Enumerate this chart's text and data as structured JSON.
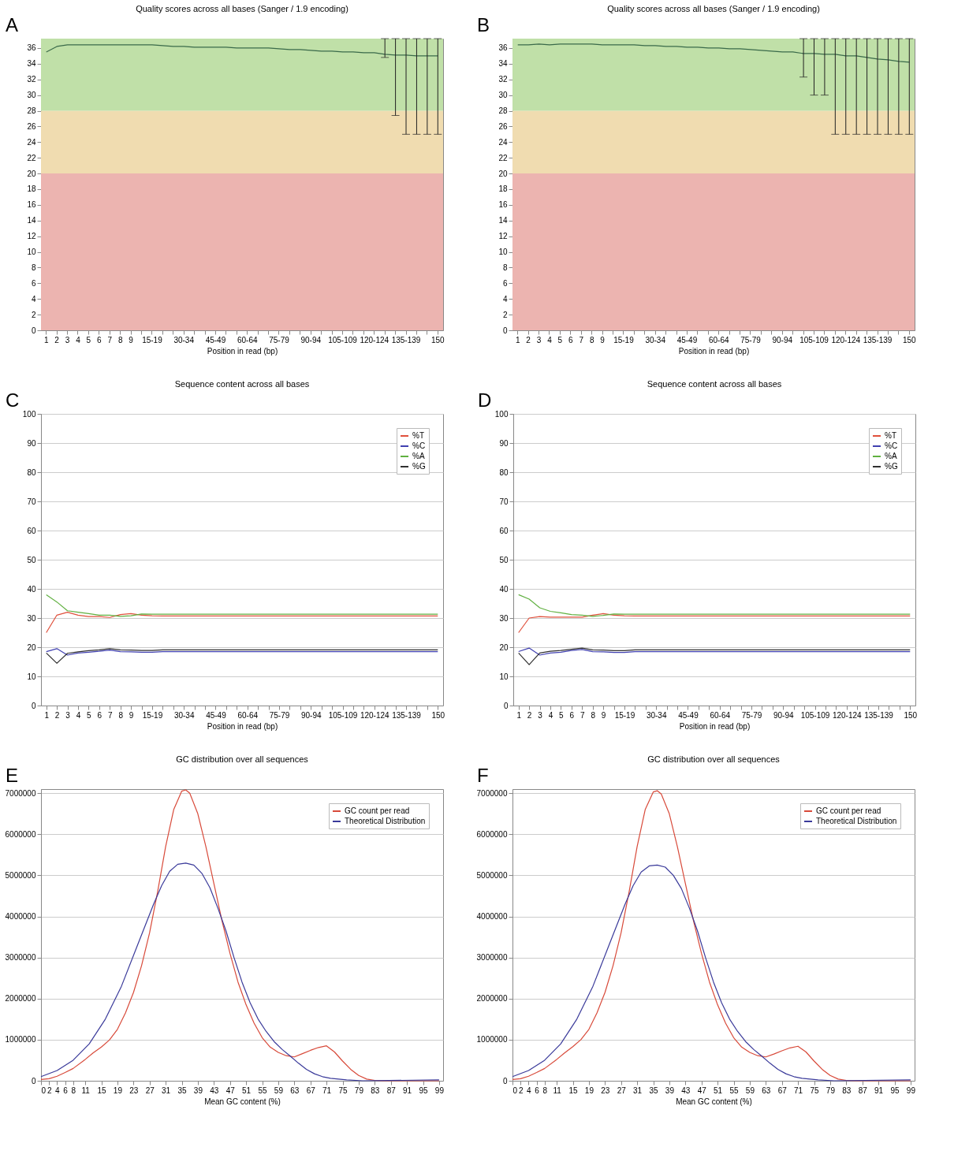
{
  "chart_data": [
    {
      "type": "line",
      "title": "Quality scores across all bases (Sanger / 1.9 encoding)",
      "xlabel": "Position in read (bp)",
      "annotations": [
        "A"
      ],
      "categories": [
        "1",
        "2",
        "3",
        "4",
        "5",
        "6",
        "7",
        "8",
        "9",
        null,
        "15-19",
        null,
        null,
        "30-34",
        null,
        null,
        "45-49",
        null,
        null,
        "60-64",
        null,
        null,
        "75-79",
        null,
        null,
        "90-94",
        null,
        null,
        "105-109",
        null,
        null,
        "120-124",
        null,
        null,
        "135-139",
        null,
        null,
        "150"
      ],
      "series": [
        {
          "color": "#3a6a4a",
          "values": [
            35.5,
            36.2,
            36.4,
            36.4,
            36.4,
            36.4,
            36.4,
            36.4,
            36.4,
            36.4,
            36.4,
            36.3,
            36.2,
            36.2,
            36.1,
            36.1,
            36.1,
            36.1,
            36.0,
            36.0,
            36.0,
            36.0,
            35.9,
            35.8,
            35.8,
            35.7,
            35.6,
            35.6,
            35.5,
            35.5,
            35.4,
            35.4,
            35.2,
            35.1,
            35.1,
            35.0,
            35.0,
            35.0
          ],
          "errors": [
            null,
            null,
            null,
            null,
            null,
            null,
            null,
            null,
            null,
            null,
            null,
            null,
            null,
            null,
            null,
            null,
            null,
            null,
            null,
            null,
            null,
            null,
            null,
            null,
            null,
            null,
            null,
            null,
            null,
            null,
            null,
            null,
            [
              34.8,
              37.2
            ],
            [
              27.4,
              37.2
            ],
            [
              25,
              37.2
            ],
            [
              25,
              37.2
            ],
            [
              25,
              37.2
            ],
            [
              25,
              37.2
            ]
          ]
        }
      ],
      "bands": [
        {
          "axis": "y",
          "from": 0,
          "to": 20,
          "color": "#ecb4b0"
        },
        {
          "axis": "y",
          "from": 20,
          "to": 28,
          "color": "#f0dcb0"
        },
        {
          "axis": "y",
          "from": 28,
          "to": 37.2,
          "color": "#c0e0a8"
        }
      ],
      "ylim": [
        0,
        37.2
      ],
      "yticks": [
        0,
        2,
        4,
        6,
        8,
        10,
        12,
        14,
        16,
        18,
        20,
        22,
        24,
        26,
        28,
        30,
        32,
        34,
        36
      ]
    },
    {
      "type": "line",
      "title": "Quality scores across all bases (Sanger / 1.9 encoding)",
      "xlabel": "Position in read (bp)",
      "annotations": [
        "B"
      ],
      "categories": [
        "1",
        "2",
        "3",
        "4",
        "5",
        "6",
        "7",
        "8",
        "9",
        null,
        "15-19",
        null,
        null,
        "30-34",
        null,
        null,
        "45-49",
        null,
        null,
        "60-64",
        null,
        null,
        "75-79",
        null,
        null,
        "90-94",
        null,
        null,
        "105-109",
        null,
        null,
        "120-124",
        null,
        null,
        "135-139",
        null,
        null,
        "150"
      ],
      "series": [
        {
          "color": "#3a6a4a",
          "values": [
            36.4,
            36.4,
            36.5,
            36.4,
            36.5,
            36.5,
            36.5,
            36.5,
            36.4,
            36.4,
            36.4,
            36.4,
            36.3,
            36.3,
            36.2,
            36.2,
            36.1,
            36.1,
            36.0,
            36.0,
            35.9,
            35.9,
            35.8,
            35.7,
            35.6,
            35.5,
            35.5,
            35.3,
            35.3,
            35.2,
            35.2,
            35.0,
            35.0,
            34.8,
            34.6,
            34.5,
            34.3,
            34.2
          ],
          "errors": [
            null,
            null,
            null,
            null,
            null,
            null,
            null,
            null,
            null,
            null,
            null,
            null,
            null,
            null,
            null,
            null,
            null,
            null,
            null,
            null,
            null,
            null,
            null,
            null,
            null,
            null,
            null,
            [
              32.3,
              37.2
            ],
            [
              30,
              37.2
            ],
            [
              30,
              37.2
            ],
            [
              25,
              37.2
            ],
            [
              25,
              37.2
            ],
            [
              25,
              37.2
            ],
            [
              25,
              37.2
            ],
            [
              25,
              37.2
            ],
            [
              25,
              37.2
            ],
            [
              25,
              37.2
            ],
            [
              25,
              37.2
            ]
          ]
        }
      ],
      "bands": [
        {
          "axis": "y",
          "from": 0,
          "to": 20,
          "color": "#ecb4b0"
        },
        {
          "axis": "y",
          "from": 20,
          "to": 28,
          "color": "#f0dcb0"
        },
        {
          "axis": "y",
          "from": 28,
          "to": 37.2,
          "color": "#c0e0a8"
        }
      ],
      "ylim": [
        0,
        37.2
      ],
      "yticks": [
        0,
        2,
        4,
        6,
        8,
        10,
        12,
        14,
        16,
        18,
        20,
        22,
        24,
        26,
        28,
        30,
        32,
        34,
        36
      ]
    },
    {
      "type": "line",
      "title": "Sequence content across all bases",
      "xlabel": "Position in read (bp)",
      "annotations": [
        "C"
      ],
      "categories": [
        "1",
        "2",
        "3",
        "4",
        "5",
        "6",
        "7",
        "8",
        "9",
        null,
        "15-19",
        null,
        null,
        "30-34",
        null,
        null,
        "45-49",
        null,
        null,
        "60-64",
        null,
        null,
        "75-79",
        null,
        null,
        "90-94",
        null,
        null,
        "105-109",
        null,
        null,
        "120-124",
        null,
        null,
        "135-139",
        null,
        null,
        "150"
      ],
      "series": [
        {
          "name": "%T",
          "color": "#e0503c",
          "values": [
            25,
            31,
            32,
            31,
            30.5,
            30.5,
            30.2,
            31.2,
            31.5,
            31.0,
            30.8,
            30.7,
            30.7,
            30.7,
            30.7,
            30.7,
            30.7,
            30.7,
            30.7,
            30.7,
            30.7,
            30.7,
            30.7,
            30.7,
            30.7,
            30.7,
            30.7,
            30.7,
            30.7,
            30.7,
            30.7,
            30.7,
            30.7,
            30.7,
            30.7,
            30.7,
            30.7,
            30.7
          ]
        },
        {
          "name": "%C",
          "color": "#4040b0",
          "values": [
            18.5,
            19.5,
            17.3,
            18.0,
            18.3,
            18.6,
            19.0,
            18.5,
            18.4,
            18.3,
            18.3,
            18.5,
            18.5,
            18.5,
            18.5,
            18.5,
            18.5,
            18.5,
            18.5,
            18.5,
            18.5,
            18.5,
            18.5,
            18.5,
            18.5,
            18.5,
            18.5,
            18.5,
            18.5,
            18.5,
            18.5,
            18.5,
            18.5,
            18.5,
            18.5,
            18.5,
            18.5,
            18.5
          ]
        },
        {
          "name": "%A",
          "color": "#60b040",
          "values": [
            38,
            35.5,
            32.5,
            32,
            31.5,
            31,
            31,
            30.6,
            30.8,
            31.4,
            31.3,
            31.3,
            31.3,
            31.3,
            31.3,
            31.3,
            31.3,
            31.3,
            31.3,
            31.3,
            31.3,
            31.3,
            31.3,
            31.3,
            31.3,
            31.3,
            31.3,
            31.3,
            31.3,
            31.3,
            31.3,
            31.3,
            31.3,
            31.3,
            31.3,
            31.3,
            31.3,
            31.3
          ]
        },
        {
          "name": "%G",
          "color": "#303030",
          "values": [
            18,
            14.5,
            17.9,
            18.4,
            18.8,
            19.1,
            19.5,
            19.1,
            19.0,
            18.9,
            18.9,
            19.1,
            19.1,
            19.1,
            19.1,
            19.1,
            19.1,
            19.1,
            19.1,
            19.1,
            19.1,
            19.1,
            19.1,
            19.1,
            19.1,
            19.1,
            19.1,
            19.1,
            19.1,
            19.1,
            19.1,
            19.1,
            19.1,
            19.1,
            19.1,
            19.1,
            19.1,
            19.1
          ]
        }
      ],
      "ylim": [
        0,
        100
      ],
      "yticks": [
        0,
        10,
        20,
        30,
        40,
        50,
        60,
        70,
        80,
        90,
        100
      ],
      "grid": "y",
      "legend": "top right"
    },
    {
      "type": "line",
      "title": "Sequence content across all bases",
      "xlabel": "Position in read (bp)",
      "annotations": [
        "D"
      ],
      "categories": [
        "1",
        "2",
        "3",
        "4",
        "5",
        "6",
        "7",
        "8",
        "9",
        null,
        "15-19",
        null,
        null,
        "30-34",
        null,
        null,
        "45-49",
        null,
        null,
        "60-64",
        null,
        null,
        "75-79",
        null,
        null,
        "90-94",
        null,
        null,
        "105-109",
        null,
        null,
        "120-124",
        null,
        null,
        "135-139",
        null,
        null,
        "150"
      ],
      "series": [
        {
          "name": "%T",
          "color": "#e0503c",
          "values": [
            25,
            30,
            30.5,
            30.3,
            30.3,
            30.3,
            30.3,
            31,
            31.5,
            31.0,
            30.8,
            30.7,
            30.7,
            30.7,
            30.7,
            30.7,
            30.7,
            30.7,
            30.7,
            30.7,
            30.7,
            30.7,
            30.7,
            30.7,
            30.7,
            30.7,
            30.7,
            30.7,
            30.7,
            30.7,
            30.7,
            30.7,
            30.7,
            30.7,
            30.7,
            30.7,
            30.7,
            30.7
          ]
        },
        {
          "name": "%C",
          "color": "#4040b0",
          "values": [
            18.5,
            19.7,
            17.3,
            18.0,
            18.3,
            18.9,
            19.2,
            18.5,
            18.4,
            18.2,
            18.2,
            18.5,
            18.5,
            18.5,
            18.5,
            18.5,
            18.5,
            18.5,
            18.5,
            18.5,
            18.5,
            18.5,
            18.5,
            18.5,
            18.5,
            18.5,
            18.5,
            18.5,
            18.5,
            18.5,
            18.5,
            18.5,
            18.5,
            18.5,
            18.5,
            18.5,
            18.5,
            18.5
          ]
        },
        {
          "name": "%A",
          "color": "#60b040",
          "values": [
            38,
            36.5,
            33.5,
            32.3,
            31.8,
            31.2,
            31,
            30.6,
            30.9,
            31.4,
            31.3,
            31.3,
            31.3,
            31.3,
            31.3,
            31.3,
            31.3,
            31.3,
            31.3,
            31.3,
            31.3,
            31.3,
            31.3,
            31.3,
            31.3,
            31.3,
            31.3,
            31.3,
            31.3,
            31.3,
            31.3,
            31.3,
            31.3,
            31.3,
            31.3,
            31.3,
            31.3,
            31.3
          ]
        },
        {
          "name": "%G",
          "color": "#303030",
          "values": [
            18,
            14,
            18.0,
            18.6,
            18.9,
            19.3,
            19.7,
            19.1,
            19.0,
            18.8,
            18.8,
            19.1,
            19.1,
            19.1,
            19.1,
            19.1,
            19.1,
            19.1,
            19.1,
            19.1,
            19.1,
            19.1,
            19.1,
            19.1,
            19.1,
            19.1,
            19.1,
            19.1,
            19.1,
            19.1,
            19.1,
            19.1,
            19.1,
            19.1,
            19.1,
            19.1,
            19.1,
            19.1
          ]
        }
      ],
      "ylim": [
        0,
        100
      ],
      "yticks": [
        0,
        10,
        20,
        30,
        40,
        50,
        60,
        70,
        80,
        90,
        100
      ],
      "grid": "y",
      "legend": "top right"
    },
    {
      "type": "line",
      "title": "GC distribution over all sequences",
      "xlabel": "Mean GC content (%)",
      "annotations": [
        "E"
      ],
      "series": [
        {
          "name": "GC count per read",
          "color": "#d84a3a",
          "x": [
            0,
            2,
            4,
            6,
            8,
            11,
            13,
            15,
            17,
            19,
            21,
            23,
            25,
            27,
            29,
            31,
            33,
            35,
            36,
            37,
            39,
            41,
            43,
            45,
            47,
            49,
            51,
            53,
            55,
            57,
            59,
            61,
            63,
            65,
            67,
            69,
            71,
            73,
            75,
            77,
            79,
            81,
            83,
            85,
            99
          ],
          "values": [
            30000,
            50000,
            110000,
            200000,
            300000,
            520000,
            680000,
            820000,
            990000,
            1250000,
            1650000,
            2150000,
            2800000,
            3600000,
            4600000,
            5700000,
            6600000,
            7050000,
            7080000,
            7000000,
            6500000,
            5700000,
            4800000,
            3900000,
            3100000,
            2400000,
            1850000,
            1400000,
            1050000,
            820000,
            690000,
            610000,
            580000,
            660000,
            740000,
            810000,
            850000,
            700000,
            480000,
            280000,
            130000,
            40000,
            10000,
            0,
            0
          ]
        },
        {
          "name": "Theoretical Distribution",
          "color": "#3a3a9a",
          "x": [
            0,
            4,
            8,
            12,
            16,
            20,
            24,
            28,
            30,
            32,
            34,
            36,
            38,
            40,
            42,
            44,
            46,
            48,
            50,
            52,
            54,
            56,
            58,
            60,
            62,
            64,
            66,
            68,
            70,
            72,
            76,
            80,
            99
          ],
          "values": [
            100000,
            250000,
            500000,
            900000,
            1500000,
            2300000,
            3300000,
            4300000,
            4750000,
            5100000,
            5270000,
            5300000,
            5250000,
            5050000,
            4700000,
            4200000,
            3650000,
            3000000,
            2400000,
            1900000,
            1500000,
            1200000,
            950000,
            760000,
            600000,
            430000,
            280000,
            170000,
            100000,
            60000,
            20000,
            0,
            20000
          ]
        }
      ],
      "xlim": [
        0,
        100
      ],
      "xticks": [
        0,
        2,
        4,
        6,
        8,
        11,
        15,
        19,
        23,
        27,
        31,
        35,
        39,
        43,
        47,
        51,
        55,
        59,
        63,
        67,
        71,
        75,
        79,
        83,
        87,
        91,
        95,
        99
      ],
      "ylim": [
        0,
        7100000
      ],
      "yticks": [
        0,
        1000000,
        2000000,
        3000000,
        4000000,
        5000000,
        6000000,
        7000000
      ],
      "grid": "y",
      "legend": "top right"
    },
    {
      "type": "line",
      "title": "GC distribution over all sequences",
      "xlabel": "Mean GC content (%)",
      "annotations": [
        "F"
      ],
      "series": [
        {
          "name": "GC count per read",
          "color": "#d84a3a",
          "x": [
            0,
            2,
            4,
            6,
            8,
            11,
            13,
            15,
            17,
            19,
            21,
            23,
            25,
            27,
            29,
            31,
            33,
            35,
            36,
            37,
            39,
            41,
            43,
            45,
            47,
            49,
            51,
            53,
            55,
            57,
            59,
            61,
            63,
            65,
            67,
            69,
            71,
            73,
            75,
            77,
            79,
            81,
            83,
            85,
            99
          ],
          "values": [
            30000,
            50000,
            110000,
            200000,
            300000,
            520000,
            680000,
            830000,
            1000000,
            1250000,
            1650000,
            2150000,
            2800000,
            3600000,
            4600000,
            5700000,
            6600000,
            7030000,
            7060000,
            6980000,
            6500000,
            5700000,
            4800000,
            3900000,
            3100000,
            2400000,
            1850000,
            1400000,
            1050000,
            820000,
            690000,
            610000,
            580000,
            650000,
            730000,
            800000,
            840000,
            700000,
            480000,
            280000,
            130000,
            40000,
            10000,
            0,
            0
          ]
        },
        {
          "name": "Theoretical Distribution",
          "color": "#3a3a9a",
          "x": [
            0,
            4,
            8,
            12,
            16,
            20,
            24,
            28,
            30,
            32,
            34,
            36,
            38,
            40,
            42,
            44,
            46,
            48,
            50,
            52,
            54,
            56,
            58,
            60,
            62,
            64,
            66,
            68,
            70,
            72,
            76,
            80,
            99
          ],
          "values": [
            100000,
            250000,
            500000,
            900000,
            1500000,
            2300000,
            3300000,
            4300000,
            4750000,
            5080000,
            5230000,
            5250000,
            5200000,
            5000000,
            4680000,
            4200000,
            3650000,
            3000000,
            2400000,
            1900000,
            1500000,
            1200000,
            950000,
            760000,
            600000,
            430000,
            280000,
            170000,
            100000,
            60000,
            20000,
            0,
            20000
          ]
        }
      ],
      "xlim": [
        0,
        100
      ],
      "xticks": [
        0,
        2,
        4,
        6,
        8,
        11,
        15,
        19,
        23,
        27,
        31,
        35,
        39,
        43,
        47,
        51,
        55,
        59,
        63,
        67,
        71,
        75,
        79,
        83,
        87,
        91,
        95,
        99
      ],
      "ylim": [
        0,
        7100000
      ],
      "yticks": [
        0,
        1000000,
        2000000,
        3000000,
        4000000,
        5000000,
        6000000,
        7000000
      ],
      "grid": "y",
      "legend": "top right"
    }
  ]
}
